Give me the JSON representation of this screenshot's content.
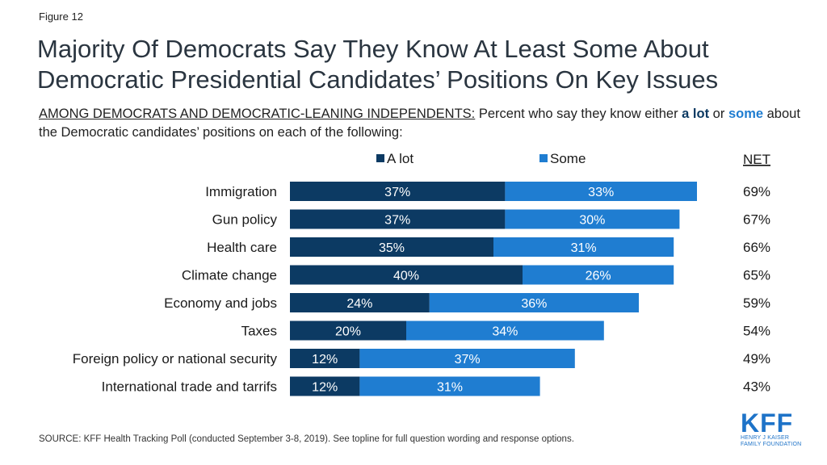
{
  "figure_label": "Figure 12",
  "title_line1": "Majority Of Democrats Say They Know At Least Some About",
  "title_line2": "Democratic Presidential Candidates’ Positions On Key Issues",
  "subtitle": {
    "prefix": "AMONG DEMOCRATS AND DEMOCRATIC-LEANING INDEPENDENTS:",
    "part1": " Percent who say they know either ",
    "a_lot": "a lot",
    "part2": " or ",
    "some": "some",
    "part3": " about the Democratic candidates’ positions on each of the following:"
  },
  "source": "SOURCE: KFF Health Tracking Poll (conducted September 3-8, 2019). See topline for full question wording and response options.",
  "logo": {
    "text": "KFF",
    "line1": "HENRY J KAISER",
    "line2": "FAMILY FOUNDATION"
  },
  "colors": {
    "a_lot": "#0c3a63",
    "some": "#1f7dd1",
    "subtitle_a_lot": "#0c3a63",
    "subtitle_some": "#1f7dd1"
  },
  "chart_data": {
    "type": "bar",
    "orientation": "horizontal",
    "stacked": true,
    "categories": [
      "Immigration",
      "Gun policy",
      "Health care",
      "Climate change",
      "Economy and jobs",
      "Taxes",
      "Foreign policy or national security",
      "International trade and tarrifs"
    ],
    "series": [
      {
        "name": "A lot",
        "values": [
          37,
          37,
          35,
          40,
          24,
          20,
          12,
          12
        ]
      },
      {
        "name": "Some",
        "values": [
          33,
          30,
          31,
          26,
          36,
          34,
          37,
          31
        ]
      }
    ],
    "net_label": "NET",
    "net_values": [
      69,
      67,
      66,
      65,
      59,
      54,
      49,
      43
    ],
    "value_suffix": "%",
    "legend_position": "top",
    "grid": false,
    "xlim": [
      0,
      70
    ]
  }
}
